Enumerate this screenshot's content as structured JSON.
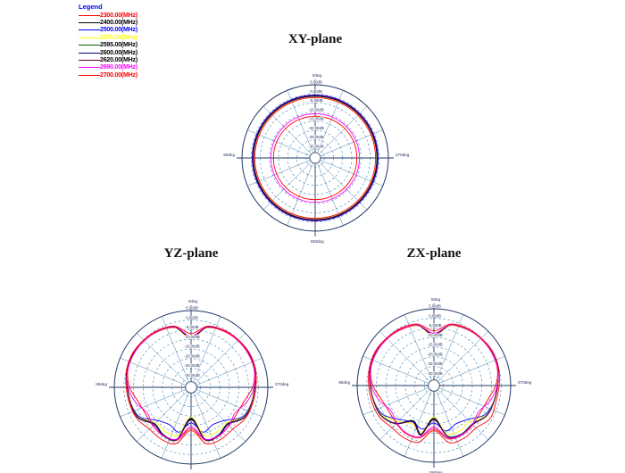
{
  "page": {
    "background": "#ffffff"
  },
  "legend": {
    "title": "Legend",
    "title_color": "#0000ff",
    "items": [
      {
        "label": "2300.00(MHz)",
        "color": "#ff0000",
        "text_color": "#ff0000"
      },
      {
        "label": "2400.00(MHz)",
        "color": "#000000",
        "text_color": "#000000"
      },
      {
        "label": "2500.00(MHz)",
        "color": "#0000ff",
        "text_color": "#0000ff"
      },
      {
        "label": "2570.00(MHz)",
        "color": "#ffff00",
        "text_color": "#ffff00"
      },
      {
        "label": "2595.00(MHz)",
        "color": "#006400",
        "text_color": "#000000"
      },
      {
        "label": "2600.00(MHz)",
        "color": "#000080",
        "text_color": "#000000"
      },
      {
        "label": "2620.00(MHz)",
        "color": "#660033",
        "text_color": "#000000"
      },
      {
        "label": "2690.00(MHz)",
        "color": "#ff00ff",
        "text_color": "#ff00ff"
      },
      {
        "label": "2700.00(MHz)",
        "color": "#ff0000",
        "text_color": "#ff0000"
      }
    ]
  },
  "chart_data": [
    {
      "type": "polar",
      "plane": "xy",
      "title": "XY-plane",
      "angle_labels": {
        "top": "0deg",
        "left": "90deg",
        "bottom": "180deg",
        "right": "270deg"
      },
      "radial_tick_labels": [
        "5.00dB",
        "0.00dB",
        "-5.00dB",
        "-10.00dB",
        "-15.00dB",
        "-20.00dB",
        "-25.00dB",
        "-30.00dB"
      ],
      "r_range_db": [
        -35,
        5
      ],
      "grid": {
        "rings": 8,
        "spokes": 16,
        "ring_color": "#4080b0",
        "axis_color": "#1f3864"
      },
      "sample_step_deg": 15,
      "series": [
        {
          "name": "2300.00(MHz)",
          "color": "#ff0000",
          "db": -12.2
        },
        {
          "name": "2400.00(MHz)",
          "color": "#000000",
          "db": -1.0
        },
        {
          "name": "2500.00(MHz)",
          "color": "#0000ff",
          "db": -0.6
        },
        {
          "name": "2570.00(MHz)",
          "color": "#ffff00",
          "db": -1.5
        },
        {
          "name": "2595.00(MHz)",
          "color": "#006400",
          "db": -1.1
        },
        {
          "name": "2600.00(MHz)",
          "color": "#000080",
          "db": -1.3
        },
        {
          "name": "2620.00(MHz)",
          "color": "#660033",
          "db": -0.9
        },
        {
          "name": "2690.00(MHz)",
          "color": "#ff00ff",
          "db": -10.8
        },
        {
          "name": "2700.00(MHz)",
          "color": "#ff0000",
          "db": -2.0
        }
      ]
    },
    {
      "type": "polar",
      "plane": "yz",
      "title": "YZ-plane",
      "angle_labels": {
        "top": "0deg",
        "left": "90deg",
        "bottom": "180deg",
        "right": "270deg"
      },
      "radial_tick_labels": [
        "5.00dB",
        "0.00dB",
        "-5.00dB",
        "-10.00dB",
        "-15.00dB",
        "-20.00dB",
        "-25.00dB",
        "-30.00dB"
      ],
      "r_range_db": [
        -35,
        5
      ],
      "grid": {
        "rings": 8,
        "spokes": 16,
        "ring_color": "#4080b0",
        "axis_color": "#1f3864"
      },
      "sample_step_deg": 15,
      "series": [
        {
          "name": "2300.00(MHz)",
          "color": "#ff0000",
          "db": [
            -8.5,
            -2.8,
            -1.2,
            -0.6,
            -0.5,
            -0.9,
            -3.0,
            -6.5,
            -7.5,
            -6.8,
            -5.8,
            -6.5,
            -13.5,
            -6.5,
            -5.8,
            -6.8,
            -7.5,
            -6.5,
            -3.0,
            -0.9,
            -0.5,
            -0.6,
            -1.2,
            -2.8
          ]
        },
        {
          "name": "2400.00(MHz)",
          "color": "#000000",
          "db": [
            -9.0,
            -2.5,
            -0.8,
            -0.3,
            -0.2,
            -0.5,
            -1.8,
            -2.4,
            -3.2,
            -8.0,
            -6.2,
            -6.8,
            -18.5,
            -6.8,
            -6.2,
            -8.0,
            -3.2,
            -2.4,
            -1.8,
            -0.5,
            -0.2,
            -0.3,
            -0.8,
            -2.5
          ]
        },
        {
          "name": "2500.00(MHz)",
          "color": "#0000ff",
          "db": [
            -9.0,
            -2.5,
            -0.8,
            -0.3,
            -0.2,
            -0.5,
            -1.8,
            -2.6,
            -4.2,
            -10.5,
            -12.5,
            -10.8,
            -16.5,
            -10.8,
            -12.5,
            -10.5,
            -4.2,
            -2.6,
            -1.8,
            -0.5,
            -0.2,
            -0.3,
            -0.8,
            -2.5
          ]
        },
        {
          "name": "2570.00(MHz)",
          "color": "#ffff00",
          "db": [
            -9.6,
            -2.7,
            -0.9,
            -0.4,
            -0.3,
            -0.6,
            -2.0,
            -2.6,
            -3.6,
            -9.0,
            -8.2,
            -9.2,
            -19.5,
            -9.2,
            -8.2,
            -9.0,
            -3.6,
            -2.6,
            -2.0,
            -0.6,
            -0.3,
            -0.4,
            -0.9,
            -2.7
          ]
        },
        {
          "name": "2595.00(MHz)",
          "color": "#006400",
          "db": [
            -9.2,
            -2.6,
            -0.9,
            -0.35,
            -0.25,
            -0.55,
            -1.9,
            -2.5,
            -3.4,
            -8.2,
            -6.4,
            -7.0,
            -19.0,
            -7.0,
            -6.4,
            -8.2,
            -3.4,
            -2.5,
            -1.9,
            -0.55,
            -0.25,
            -0.35,
            -0.9,
            -2.6
          ]
        },
        {
          "name": "2600.00(MHz)",
          "color": "#000080",
          "db": [
            -9.1,
            -2.55,
            -0.85,
            -0.3,
            -0.2,
            -0.5,
            -1.85,
            -2.45,
            -3.3,
            -8.1,
            -6.3,
            -7.2,
            -18.8,
            -7.2,
            -6.3,
            -8.1,
            -3.3,
            -2.45,
            -1.85,
            -0.5,
            -0.2,
            -0.3,
            -0.85,
            -2.55
          ]
        },
        {
          "name": "2620.00(MHz)",
          "color": "#660033",
          "db": [
            -8.8,
            -2.4,
            -0.8,
            -0.3,
            -0.2,
            -0.5,
            -1.8,
            -2.4,
            -3.1,
            -7.6,
            -5.9,
            -6.6,
            -18.0,
            -6.6,
            -5.9,
            -7.6,
            -3.1,
            -2.4,
            -1.8,
            -0.5,
            -0.2,
            -0.3,
            -0.8,
            -2.4
          ]
        },
        {
          "name": "2690.00(MHz)",
          "color": "#ff00ff",
          "db": [
            -8.3,
            -2.3,
            -0.9,
            -0.5,
            -0.4,
            -0.8,
            -2.2,
            -5.0,
            -8.5,
            -7.0,
            -6.0,
            -7.0,
            -14.5,
            -7.0,
            -6.0,
            -7.0,
            -8.5,
            -5.0,
            -2.2,
            -0.8,
            -0.4,
            -0.5,
            -0.9,
            -2.3
          ]
        },
        {
          "name": "2700.00(MHz)",
          "color": "#ff0000",
          "db": [
            -7.0,
            -2.0,
            -0.6,
            -0.1,
            0.3,
            -0.2,
            -1.2,
            -1.8,
            -2.4,
            -4.2,
            -3.8,
            -4.6,
            -12.5,
            -4.6,
            -3.8,
            -4.2,
            -2.4,
            -1.8,
            -1.2,
            -0.2,
            0.3,
            -0.1,
            -0.6,
            -2.0
          ]
        }
      ]
    },
    {
      "type": "polar",
      "plane": "zx",
      "title": "ZX-plane",
      "angle_labels": {
        "top": "0deg",
        "left": "90deg",
        "bottom": "180deg",
        "right": "270deg"
      },
      "radial_tick_labels": [
        "5.00dB",
        "0.00dB",
        "-5.00dB",
        "-10.00dB",
        "-15.00dB",
        "-20.00dB",
        "-25.00dB",
        "-30.00dB"
      ],
      "r_range_db": [
        -35,
        5
      ],
      "grid": {
        "rings": 8,
        "spokes": 16,
        "ring_color": "#4080b0",
        "axis_color": "#1f3864"
      },
      "sample_step_deg": 15,
      "series": [
        {
          "name": "2300.00(MHz)",
          "color": "#ff0000",
          "db": [
            -8.0,
            -2.6,
            -1.1,
            -0.5,
            -0.4,
            -0.8,
            -2.8,
            -6.0,
            -7.0,
            -6.2,
            -5.4,
            -6.2,
            -12.5,
            -6.8,
            -6.0,
            -7.2,
            -8.0,
            -6.8,
            -3.2,
            -1.0,
            -0.5,
            -0.6,
            -1.2,
            -2.7
          ]
        },
        {
          "name": "2400.00(MHz)",
          "color": "#000000",
          "db": [
            -8.5,
            -2.3,
            -0.8,
            -0.3,
            -0.2,
            -0.5,
            -1.9,
            -2.6,
            -3.4,
            -6.5,
            -5.8,
            -7.5,
            -17.5,
            -8.5,
            -13.5,
            -7.0,
            -3.4,
            -2.6,
            -1.9,
            -0.5,
            -0.2,
            -0.3,
            -0.8,
            -2.3
          ]
        },
        {
          "name": "2500.00(MHz)",
          "color": "#0000ff",
          "db": [
            -8.8,
            -2.4,
            -0.8,
            -0.3,
            -0.2,
            -0.5,
            -1.8,
            -2.8,
            -4.5,
            -10.0,
            -12.0,
            -10.5,
            -15.5,
            -11.5,
            -13.0,
            -10.0,
            -4.5,
            -2.8,
            -1.8,
            -0.5,
            -0.2,
            -0.3,
            -0.8,
            -2.4
          ]
        },
        {
          "name": "2570.00(MHz)",
          "color": "#ffff00",
          "db": [
            -9.2,
            -2.6,
            -0.9,
            -0.4,
            -0.3,
            -0.6,
            -2.0,
            -2.8,
            -3.8,
            -8.6,
            -7.8,
            -8.8,
            -18.5,
            -9.6,
            -12.0,
            -8.6,
            -3.8,
            -2.8,
            -2.0,
            -0.6,
            -0.3,
            -0.4,
            -0.9,
            -2.6
          ]
        },
        {
          "name": "2595.00(MHz)",
          "color": "#006400",
          "db": [
            -8.7,
            -2.4,
            -0.85,
            -0.35,
            -0.25,
            -0.55,
            -1.9,
            -2.7,
            -3.5,
            -6.7,
            -6.0,
            -7.7,
            -18.0,
            -8.7,
            -13.8,
            -7.2,
            -3.5,
            -2.7,
            -1.9,
            -0.55,
            -0.25,
            -0.35,
            -0.85,
            -2.4
          ]
        },
        {
          "name": "2600.00(MHz)",
          "color": "#000080",
          "db": [
            -8.6,
            -2.35,
            -0.82,
            -0.3,
            -0.2,
            -0.5,
            -1.85,
            -2.65,
            -3.45,
            -6.6,
            -5.9,
            -7.6,
            -17.8,
            -8.6,
            -13.6,
            -7.1,
            -3.45,
            -2.65,
            -1.85,
            -0.5,
            -0.2,
            -0.3,
            -0.82,
            -2.35
          ]
        },
        {
          "name": "2620.00(MHz)",
          "color": "#660033",
          "db": [
            -8.4,
            -2.3,
            -0.8,
            -0.3,
            -0.2,
            -0.5,
            -1.8,
            -2.6,
            -3.3,
            -6.3,
            -5.6,
            -7.3,
            -17.0,
            -8.2,
            -13.0,
            -6.8,
            -3.3,
            -2.6,
            -1.8,
            -0.5,
            -0.2,
            -0.3,
            -0.8,
            -2.3
          ]
        },
        {
          "name": "2690.00(MHz)",
          "color": "#ff00ff",
          "db": [
            -7.8,
            -2.2,
            -0.8,
            -0.4,
            -0.3,
            -0.7,
            -2.0,
            -4.6,
            -8.0,
            -6.6,
            -5.6,
            -6.6,
            -13.5,
            -7.4,
            -6.4,
            -7.6,
            -9.0,
            -5.4,
            -2.4,
            -0.8,
            -0.4,
            -0.5,
            -0.9,
            -2.2
          ]
        },
        {
          "name": "2700.00(MHz)",
          "color": "#ff0000",
          "db": [
            -6.5,
            -1.8,
            -0.5,
            -0.1,
            0.4,
            -0.1,
            -1.0,
            -1.6,
            -1.0,
            -3.8,
            -3.4,
            -4.2,
            -11.5,
            -4.4,
            -3.6,
            -4.0,
            -2.2,
            -1.6,
            -1.0,
            -0.2,
            0.4,
            -0.1,
            -0.5,
            -1.8
          ]
        }
      ]
    }
  ]
}
